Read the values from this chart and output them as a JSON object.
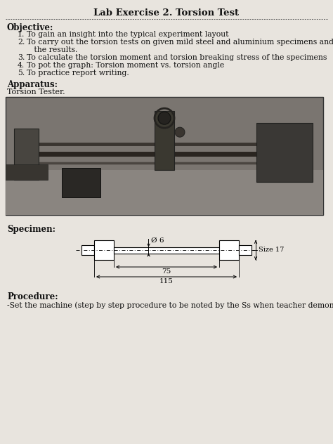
{
  "title": "Lab Exercise 2. Torsion Test",
  "bg_color": "#e8e4de",
  "text_color": "#111111",
  "objective_label": "Objective:",
  "objectives_line1": "To gain an insight into the typical experiment layout",
  "objectives_line2a": "To carry out the torsion tests on given mild steel and aluminium specimens and tabulate",
  "objectives_line2b": "   the results.",
  "objectives_line3": "To calculate the torsion moment and torsion breaking stress of the specimens",
  "objectives_line4": "To pot the graph: Torsion moment vs. torsion angle",
  "objectives_line5": "To practice report writing.",
  "apparatus_label": "Apparatus:",
  "apparatus_text": "Torsion Tester.",
  "specimen_label": "Specimen:",
  "dim_diameter": "Ø 6",
  "dim_75": "75",
  "dim_115": "115",
  "dim_size17": "Size 17",
  "procedure_label": "Procedure:",
  "procedure_text": "-Set the machine (step by step procedure to be noted by the Ss when teacher demonstrate",
  "separator_color": "#555555",
  "photo_bg": "#787878",
  "photo_edge": "#333333"
}
